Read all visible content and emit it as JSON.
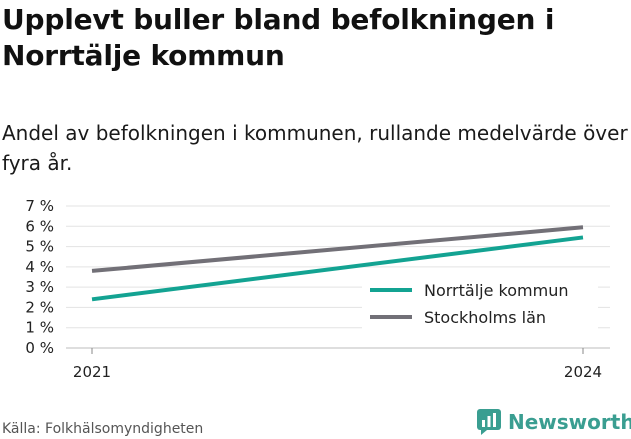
{
  "title": "Upplevt buller bland befolkningen i Norrtälje kommun",
  "subtitle": "Andel av befolkningen i kommunen, rullande medelvärde över fyra år.",
  "source": "Källa: Folkhälsomyndigheten",
  "brand": "Newsworthy",
  "colors": {
    "accent": "#13a392",
    "secondary": "#727077",
    "grid": "#e3e3e3",
    "brand": "#3a9e91"
  },
  "chart_data": {
    "type": "line",
    "x": [
      2021,
      2024
    ],
    "xticks": [
      "2021",
      "2024"
    ],
    "yticks": [
      "0 %",
      "1 %",
      "2 %",
      "3 %",
      "4 %",
      "5 %",
      "6 %",
      "7 %"
    ],
    "ylim": [
      0,
      7
    ],
    "grid": true,
    "legend_position": "bottom-right",
    "series": [
      {
        "name": "Norrtälje kommun",
        "values": [
          2.4,
          5.45
        ],
        "color": "#13a392"
      },
      {
        "name": "Stockholms län",
        "values": [
          3.8,
          5.95
        ],
        "color": "#727077"
      }
    ]
  }
}
